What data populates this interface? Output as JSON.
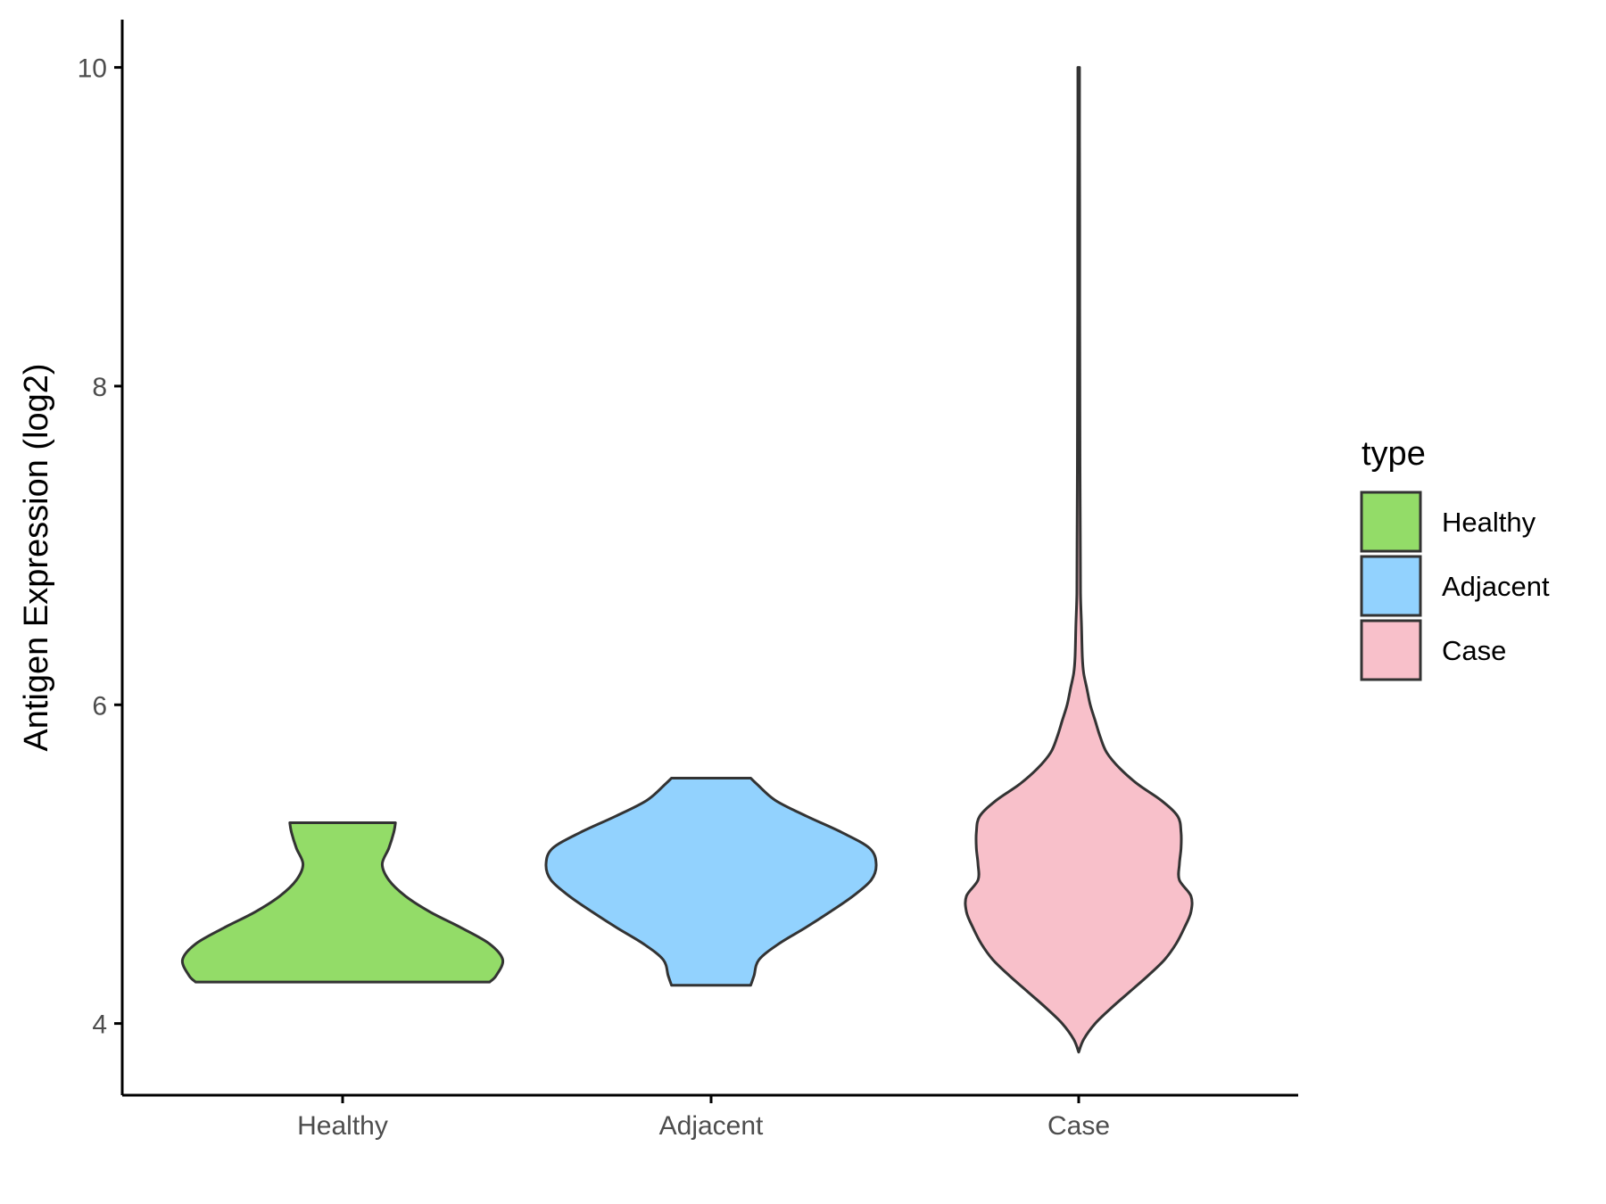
{
  "chart_data": {
    "type": "violin",
    "title": "",
    "xlabel": "",
    "ylabel": "Antigen Expression (log2)",
    "ylim": [
      3.55,
      10.3
    ],
    "yticks": [
      4,
      6,
      8,
      10
    ],
    "categories": [
      "Healthy",
      "Adjacent",
      "Case"
    ],
    "grid": false,
    "legend": {
      "title": "type",
      "position": "right",
      "entries": [
        "Healthy",
        "Adjacent",
        "Case"
      ]
    },
    "series": [
      {
        "name": "Healthy",
        "color": "#93dc68",
        "min": 4.26,
        "max": 5.26,
        "profile": [
          [
            4.26,
            0.89
          ],
          [
            4.3,
            0.93
          ],
          [
            4.4,
            0.97
          ],
          [
            4.5,
            0.89
          ],
          [
            4.6,
            0.72
          ],
          [
            4.7,
            0.53
          ],
          [
            4.8,
            0.38
          ],
          [
            4.9,
            0.28
          ],
          [
            5.0,
            0.24
          ],
          [
            5.1,
            0.28
          ],
          [
            5.2,
            0.31
          ],
          [
            5.26,
            0.32
          ]
        ]
      },
      {
        "name": "Adjacent",
        "color": "#92d2fe",
        "min": 4.24,
        "max": 5.54,
        "profile": [
          [
            4.24,
            0.24
          ],
          [
            4.3,
            0.26
          ],
          [
            4.4,
            0.29
          ],
          [
            4.5,
            0.41
          ],
          [
            4.6,
            0.57
          ],
          [
            4.7,
            0.72
          ],
          [
            4.8,
            0.86
          ],
          [
            4.9,
            0.97
          ],
          [
            5.0,
            1.0
          ],
          [
            5.1,
            0.96
          ],
          [
            5.2,
            0.79
          ],
          [
            5.3,
            0.58
          ],
          [
            5.4,
            0.39
          ],
          [
            5.5,
            0.28
          ],
          [
            5.54,
            0.24
          ]
        ]
      },
      {
        "name": "Case",
        "color": "#f8c0ca",
        "min": 3.82,
        "max": 10.0,
        "profile": [
          [
            3.82,
            0.0
          ],
          [
            3.9,
            0.03
          ],
          [
            4.0,
            0.1
          ],
          [
            4.1,
            0.2
          ],
          [
            4.2,
            0.31
          ],
          [
            4.3,
            0.42
          ],
          [
            4.4,
            0.52
          ],
          [
            4.5,
            0.59
          ],
          [
            4.6,
            0.64
          ],
          [
            4.7,
            0.68
          ],
          [
            4.8,
            0.68
          ],
          [
            4.9,
            0.61
          ],
          [
            5.0,
            0.61
          ],
          [
            5.1,
            0.62
          ],
          [
            5.2,
            0.62
          ],
          [
            5.3,
            0.6
          ],
          [
            5.4,
            0.5
          ],
          [
            5.5,
            0.36
          ],
          [
            5.6,
            0.25
          ],
          [
            5.7,
            0.17
          ],
          [
            5.8,
            0.13
          ],
          [
            5.9,
            0.1
          ],
          [
            6.0,
            0.07
          ],
          [
            6.1,
            0.05
          ],
          [
            6.2,
            0.03
          ],
          [
            6.3,
            0.022
          ],
          [
            6.5,
            0.017
          ],
          [
            6.7,
            0.011
          ],
          [
            7.0,
            0.01
          ],
          [
            7.5,
            0.008
          ],
          [
            8.0,
            0.007
          ],
          [
            8.5,
            0.006
          ],
          [
            9.0,
            0.006
          ],
          [
            9.5,
            0.005
          ],
          [
            9.9,
            0.005
          ],
          [
            10.0,
            0.005
          ]
        ]
      }
    ]
  }
}
